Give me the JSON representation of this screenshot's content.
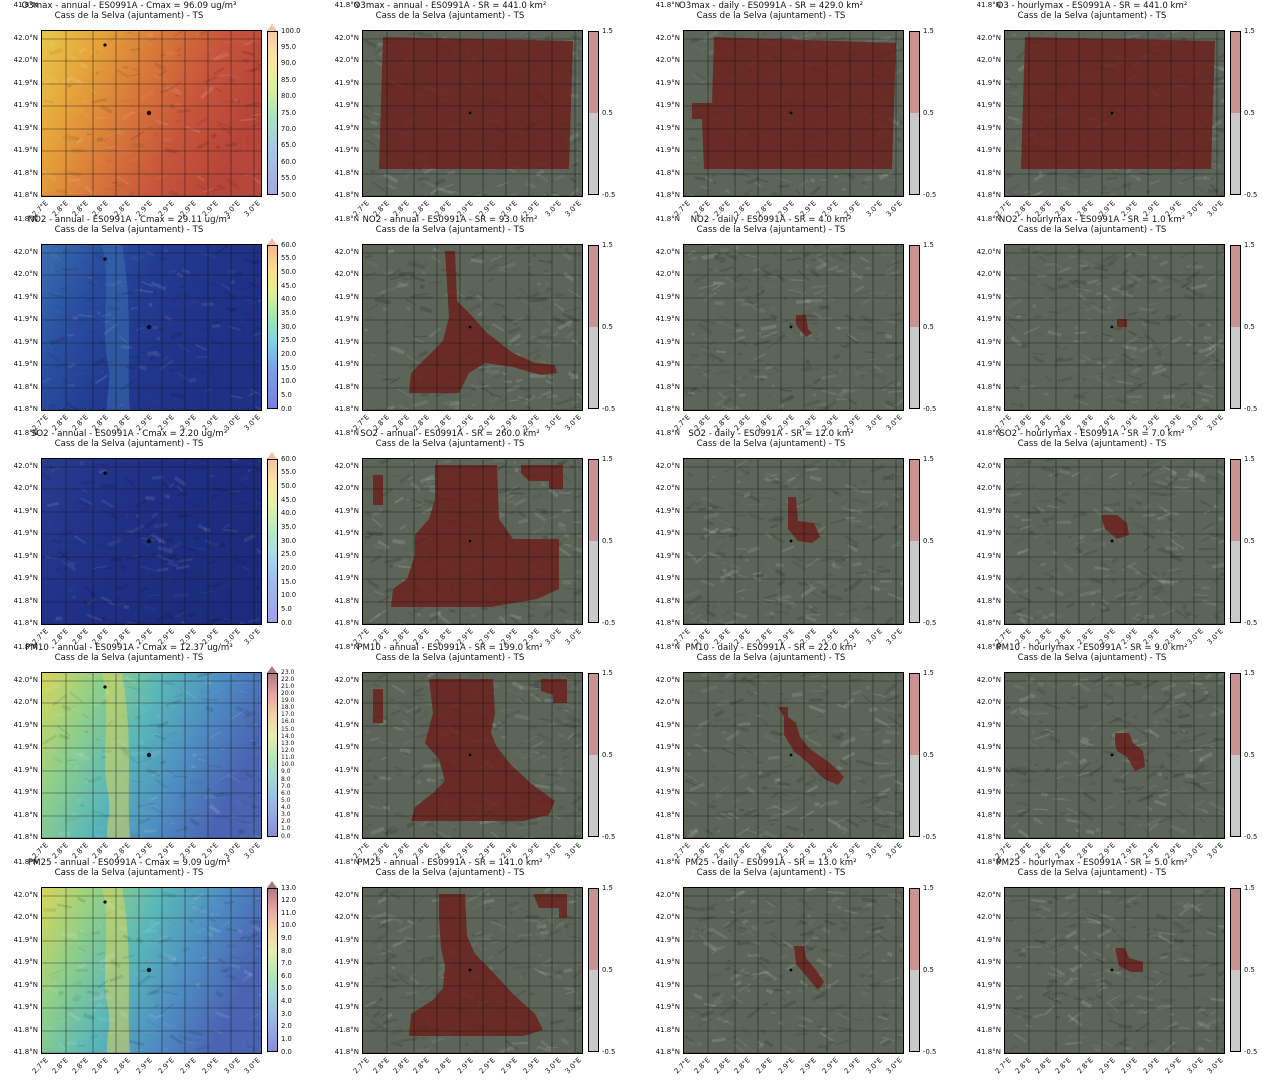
{
  "site_subtitle": "Cass de la Selva (ajuntament) - TS",
  "lat_ticks": [
    "42.0°N",
    "42.0°N",
    "41.9°N",
    "41.9°N",
    "41.9°N",
    "41.9°N",
    "41.8°N",
    "41.8°N",
    "41.8°N"
  ],
  "lon_ticks": [
    "2.7°E",
    "2.8°E",
    "2.8°E",
    "2.8°E",
    "2.8°E",
    "2.9°E",
    "2.9°E",
    "2.9°E",
    "2.9°E",
    "3.0°E",
    "3.0°E"
  ],
  "binary_colorbar_ticks": [
    "1.5",
    "0.5",
    "-0.5"
  ],
  "colors": {
    "exceed_overlay": "#6b1e1a",
    "satellite_base": "#5c6558",
    "binary_high": "#c99393",
    "binary_low": "#c9c9c9"
  },
  "rows": [
    {
      "pollutant": "O3max",
      "concentration": {
        "title": "O3max - annual - ES0991A - Cmax = 96.09 ug/m³",
        "colormap": "o3",
        "colorbar_ticks": [
          "100.0",
          "95.0",
          "90.0",
          "85.0",
          "80.0",
          "75.0",
          "70.0",
          "65.0",
          "60.0",
          "55.0",
          "50.0"
        ]
      },
      "sr_panels": [
        {
          "title": "O3max - annual - ES0991A - SR = 441.0 km²",
          "region": "big"
        },
        {
          "title": "O3max - daily - ES0991A - SR = 429.0 km²",
          "region": "big-notch"
        },
        {
          "title": "O3 - hourlymax - ES0991A - SR = 441.0 km²",
          "region": "big"
        }
      ]
    },
    {
      "pollutant": "NO2",
      "concentration": {
        "title": "NO2 - annual - ES0991A - Cmax = 29.11 ug/m³",
        "colormap": "no2",
        "colorbar_ticks": [
          "60.0",
          "55.0",
          "50.0",
          "45.0",
          "40.0",
          "35.0",
          "30.0",
          "25.0",
          "20.0",
          "15.0",
          "10.0",
          "5.0",
          "0.0"
        ]
      },
      "sr_panels": [
        {
          "title": "NO2 - annual - ES0991A - SR = 93.0 km²",
          "region": "no2-annual"
        },
        {
          "title": "NO2 - daily - ES0991A - SR = 4.0 km²",
          "region": "no2-daily"
        },
        {
          "title": "NO2 - hourlymax - ES0991A - SR = 1.0 km²",
          "region": "no2-hourly"
        }
      ]
    },
    {
      "pollutant": "SO2",
      "concentration": {
        "title": "SO2 - annual - ES0991A - Cmax = 2.20 ug/m³",
        "colormap": "so2",
        "colorbar_ticks": [
          "60.0",
          "55.0",
          "50.0",
          "45.0",
          "40.0",
          "35.0",
          "30.0",
          "25.0",
          "20.0",
          "15.0",
          "10.0",
          "5.0",
          "0.0"
        ]
      },
      "sr_panels": [
        {
          "title": "SO2 - annual - ES0991A - SR = 260.0 km²",
          "region": "so2-annual"
        },
        {
          "title": "SO2 - daily - ES0991A - SR = 12.0 km²",
          "region": "so2-daily"
        },
        {
          "title": "SO2 - hourlymax - ES0991A - SR = 7.0 km²",
          "region": "so2-hourly"
        }
      ]
    },
    {
      "pollutant": "PM10",
      "concentration": {
        "title": "PM10 - annual - ES0991A - Cmax = 12.37 ug/m³",
        "colormap": "pm",
        "colorbar_ticks": [
          "23.0",
          "22.0",
          "21.0",
          "20.0",
          "19.0",
          "18.0",
          "17.0",
          "16.0",
          "15.0",
          "14.0",
          "13.0",
          "12.0",
          "11.0",
          "10.0",
          "9.0",
          "8.0",
          "7.0",
          "6.0",
          "5.0",
          "4.0",
          "3.0",
          "2.0",
          "1.0",
          "0.0"
        ]
      },
      "sr_panels": [
        {
          "title": "PM10 - annual - ES0991A - SR = 199.0 km²",
          "region": "pm10-annual"
        },
        {
          "title": "PM10 - daily - ES0991A - SR = 22.0 km²",
          "region": "pm10-daily"
        },
        {
          "title": "PM10 - hourlymax - ES0991A - SR = 9.0 km²",
          "region": "pm10-hourly"
        }
      ]
    },
    {
      "pollutant": "PM25",
      "concentration": {
        "title": "PM25 - annual - ES0991A - Cmax = 9.09 ug/m³",
        "colormap": "pm",
        "colorbar_ticks": [
          "13.0",
          "12.0",
          "11.0",
          "10.0",
          "9.0",
          "8.0",
          "7.0",
          "6.0",
          "5.0",
          "4.0",
          "3.0",
          "2.0",
          "1.0",
          "0.0"
        ]
      },
      "sr_panels": [
        {
          "title": "PM25 - annual - ES0991A - SR = 141.0 km²",
          "region": "pm25-annual"
        },
        {
          "title": "PM25 - daily - ES0991A - SR = 13.0 km²",
          "region": "pm25-daily"
        },
        {
          "title": "PM25 - hourlymax - ES0991A - SR = 5.0 km²",
          "region": "pm25-hourly"
        }
      ]
    }
  ]
}
